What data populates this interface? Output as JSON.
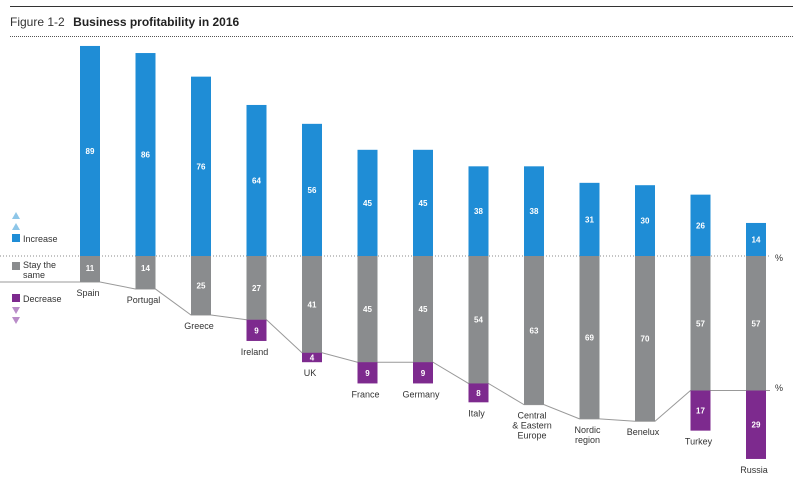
{
  "header": {
    "figure_number": "Figure 1-2",
    "title": "Business profitability in 2016"
  },
  "colors": {
    "increase": "#1f8dd6",
    "same": "#8a8c8e",
    "decrease": "#7d2a8e",
    "arrow_up": "#8ec6e8",
    "arrow_down": "#b98cc8"
  },
  "legend": {
    "increase": "Increase",
    "same_line1": "Stay the",
    "same_line2": "same",
    "decrease": "Decrease"
  },
  "unit_label": "%",
  "chart_data": {
    "type": "bar",
    "categories": [
      [
        "Spain"
      ],
      [
        "Portugal"
      ],
      [
        "Greece"
      ],
      [
        "Ireland"
      ],
      [
        "UK"
      ],
      [
        "France"
      ],
      [
        "Germany"
      ],
      [
        "Italy"
      ],
      [
        "Central",
        "& Eastern",
        "Europe"
      ],
      [
        "Nordic",
        "region"
      ],
      [
        "Benelux"
      ],
      [
        "Turkey"
      ],
      [
        "Russia"
      ]
    ],
    "series": [
      {
        "name": "Increase",
        "values": [
          89,
          86,
          76,
          64,
          56,
          45,
          45,
          38,
          38,
          31,
          30,
          26,
          14
        ]
      },
      {
        "name": "Stay the same",
        "values": [
          11,
          14,
          25,
          27,
          41,
          45,
          45,
          54,
          63,
          69,
          70,
          57,
          57
        ]
      },
      {
        "name": "Decrease",
        "values": [
          null,
          null,
          null,
          9,
          4,
          9,
          9,
          8,
          null,
          null,
          null,
          17,
          29
        ]
      }
    ]
  }
}
